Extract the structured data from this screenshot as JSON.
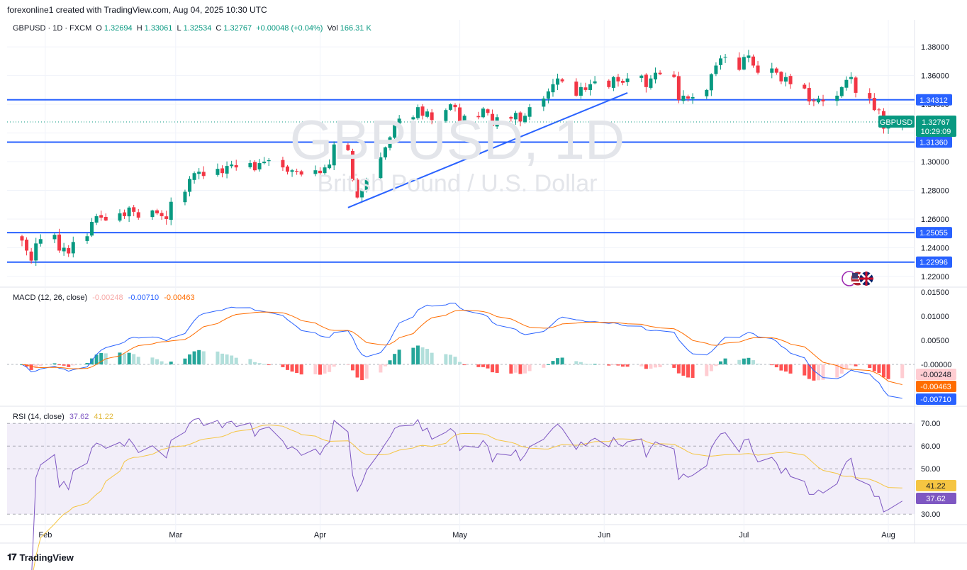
{
  "header": {
    "title": "forexonline1 created with TradingView.com, Aug 04, 2025 10:30 UTC"
  },
  "legend": {
    "symbol": "GBPUSD · 1D · FXCM",
    "o_label": "O",
    "o": "1.32694",
    "h_label": "H",
    "h": "1.33061",
    "l_label": "L",
    "l": "1.32534",
    "c_label": "C",
    "c": "1.32767",
    "change": "+0.00048 (+0.04%)",
    "vol_label": "Vol",
    "vol": "166.31 K"
  },
  "watermark": {
    "line1": "GBPUSD, 1D",
    "line2": "British Pound / U.S. Dollar"
  },
  "price_badge": {
    "symbol": "GBPUSD",
    "price": "1.32767",
    "countdown": "10:29:09"
  },
  "macd_label": {
    "title": "MACD (12, 26, close)",
    "hist": "-0.00248",
    "macd": "-0.00710",
    "signal": "-0.00463"
  },
  "rsi_label": {
    "title": "RSI (14, close)",
    "rsi": "37.62",
    "ma": "41.22"
  },
  "footer": {
    "brand": "TradingView"
  },
  "colors": {
    "up": "#089981",
    "down": "#f23645",
    "line": "#2962ff",
    "signal": "#ff6d00",
    "rsi": "#7e57c2",
    "rsi_ma": "#f5c542"
  },
  "chart_data": [
    {
      "type": "candlestick",
      "title": "GBPUSD, 1D",
      "ylim": [
        1.215,
        1.388
      ],
      "y_ticks": [
        1.22,
        1.24,
        1.26,
        1.28,
        1.3,
        1.32,
        1.34,
        1.36,
        1.38
      ],
      "y_tick_labels": [
        "1.22000",
        "1.24000",
        "1.26000",
        "1.28000",
        "1.30000",
        "1.32000",
        "1.34000",
        "1.36000",
        "1.38000"
      ],
      "x_labels": [
        "Feb",
        "Mar",
        "Apr",
        "May",
        "Jun",
        "Jul",
        "Aug"
      ],
      "x_label_dates": [
        "2025-02-01",
        "2025-03-01",
        "2025-04-01",
        "2025-05-01",
        "2025-06-01",
        "2025-07-01",
        "2025-08-01"
      ],
      "horizontal_levels": [
        {
          "value": 1.34312,
          "label": "1.34312"
        },
        {
          "value": 1.3136,
          "label": "1.31360"
        },
        {
          "value": 1.25055,
          "label": "1.25055"
        },
        {
          "value": 1.22996,
          "label": "1.22996"
        }
      ],
      "trendline": {
        "start": [
          "2025-04-07",
          1.268
        ],
        "end": [
          "2025-06-06",
          1.348
        ]
      },
      "closes": [
        1.245,
        1.238,
        1.231,
        1.243,
        1.246,
        1.249,
        1.238,
        1.24,
        1.236,
        1.244,
        1.248,
        1.258,
        1.262,
        1.261,
        1.259,
        1.264,
        1.262,
        1.268,
        1.265,
        1.261,
        1.266,
        1.264,
        1.262,
        1.26,
        1.272,
        1.279,
        1.288,
        1.292,
        1.293,
        1.29,
        1.295,
        1.292,
        1.297,
        1.298,
        1.296,
        1.299,
        1.294,
        1.299,
        1.3,
        1.301,
        1.296,
        1.293,
        1.294,
        1.293,
        1.291,
        1.294,
        1.292,
        1.296,
        1.298,
        1.312,
        1.308,
        1.287,
        1.275,
        1.28,
        1.288,
        1.303,
        1.31,
        1.317,
        1.327,
        1.33,
        1.331,
        1.338,
        1.332,
        1.335,
        1.329,
        1.336,
        1.34,
        1.338,
        1.328,
        1.332,
        1.331,
        1.337,
        1.334,
        1.325,
        1.331,
        1.33,
        1.334,
        1.328,
        1.332,
        1.338,
        1.344,
        1.349,
        1.354,
        1.358,
        1.356,
        1.346,
        1.352,
        1.35,
        1.354,
        1.356,
        1.352,
        1.359,
        1.356,
        1.355,
        1.358,
        1.36,
        1.352,
        1.358,
        1.362,
        1.361,
        1.359,
        1.343,
        1.346,
        1.344,
        1.345,
        1.35,
        1.361,
        1.367,
        1.372,
        1.373,
        1.364,
        1.373,
        1.374,
        1.367,
        1.362,
        1.365,
        1.362,
        1.356,
        1.359,
        1.354,
        1.351,
        1.342,
        1.342,
        1.344,
        1.342,
        1.346,
        1.352,
        1.357,
        1.359,
        1.348,
        1.344,
        1.336,
        1.336,
        1.323,
        1.324,
        1.3277
      ]
    },
    {
      "type": "macd",
      "title": "MACD (12, 26, close)",
      "ylim": [
        -0.0085,
        0.016
      ],
      "y_tick_labels": [
        "0.01500",
        "0.01000",
        "0.00500",
        "-0.00000"
      ],
      "y_ticks": [
        0.015,
        0.01,
        0.005,
        0.0
      ],
      "last": {
        "histogram": -0.00248,
        "macd": -0.0071,
        "signal": -0.00463
      }
    },
    {
      "type": "rsi",
      "title": "RSI (14, close)",
      "ylim": [
        26,
        76
      ],
      "y_ticks": [
        70,
        60,
        50,
        30
      ],
      "y_tick_labels": [
        "70.00",
        "60.00",
        "50.00",
        "30.00"
      ],
      "band": [
        30,
        70
      ],
      "last": {
        "rsi": 37.62,
        "ma": 41.22
      }
    }
  ]
}
